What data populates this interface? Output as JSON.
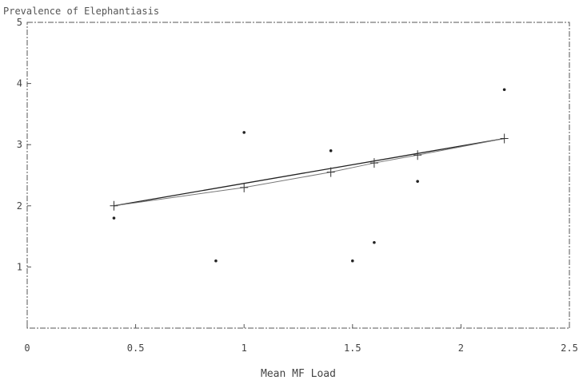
{
  "chart_data": {
    "type": "scatter",
    "title": "Prevalence of Elephantiasis",
    "xlabel": "Mean MF Load",
    "ylabel": "",
    "xlim": [
      0,
      2.5
    ],
    "ylim": [
      0,
      5
    ],
    "x_ticks": [
      "0",
      "0.5",
      "1",
      "1.5",
      "2",
      "2.5"
    ],
    "y_ticks": [
      "1",
      "2",
      "3",
      "4",
      "5"
    ],
    "grid": false,
    "points": [
      {
        "x": 0.4,
        "y": 1.8
      },
      {
        "x": 0.87,
        "y": 1.1
      },
      {
        "x": 1.0,
        "y": 3.2
      },
      {
        "x": 1.4,
        "y": 2.9
      },
      {
        "x": 1.5,
        "y": 1.1
      },
      {
        "x": 1.6,
        "y": 1.4
      },
      {
        "x": 1.8,
        "y": 2.4
      },
      {
        "x": 2.2,
        "y": 3.9
      }
    ],
    "fit_line": [
      {
        "x": 0.4,
        "y": 2.0
      },
      {
        "x": 2.2,
        "y": 3.1
      }
    ],
    "fitted_points": [
      {
        "x": 0.4,
        "y": 2.0
      },
      {
        "x": 1.0,
        "y": 2.3
      },
      {
        "x": 1.4,
        "y": 2.55
      },
      {
        "x": 1.6,
        "y": 2.7
      },
      {
        "x": 1.8,
        "y": 2.83
      },
      {
        "x": 2.2,
        "y": 3.1
      }
    ]
  }
}
